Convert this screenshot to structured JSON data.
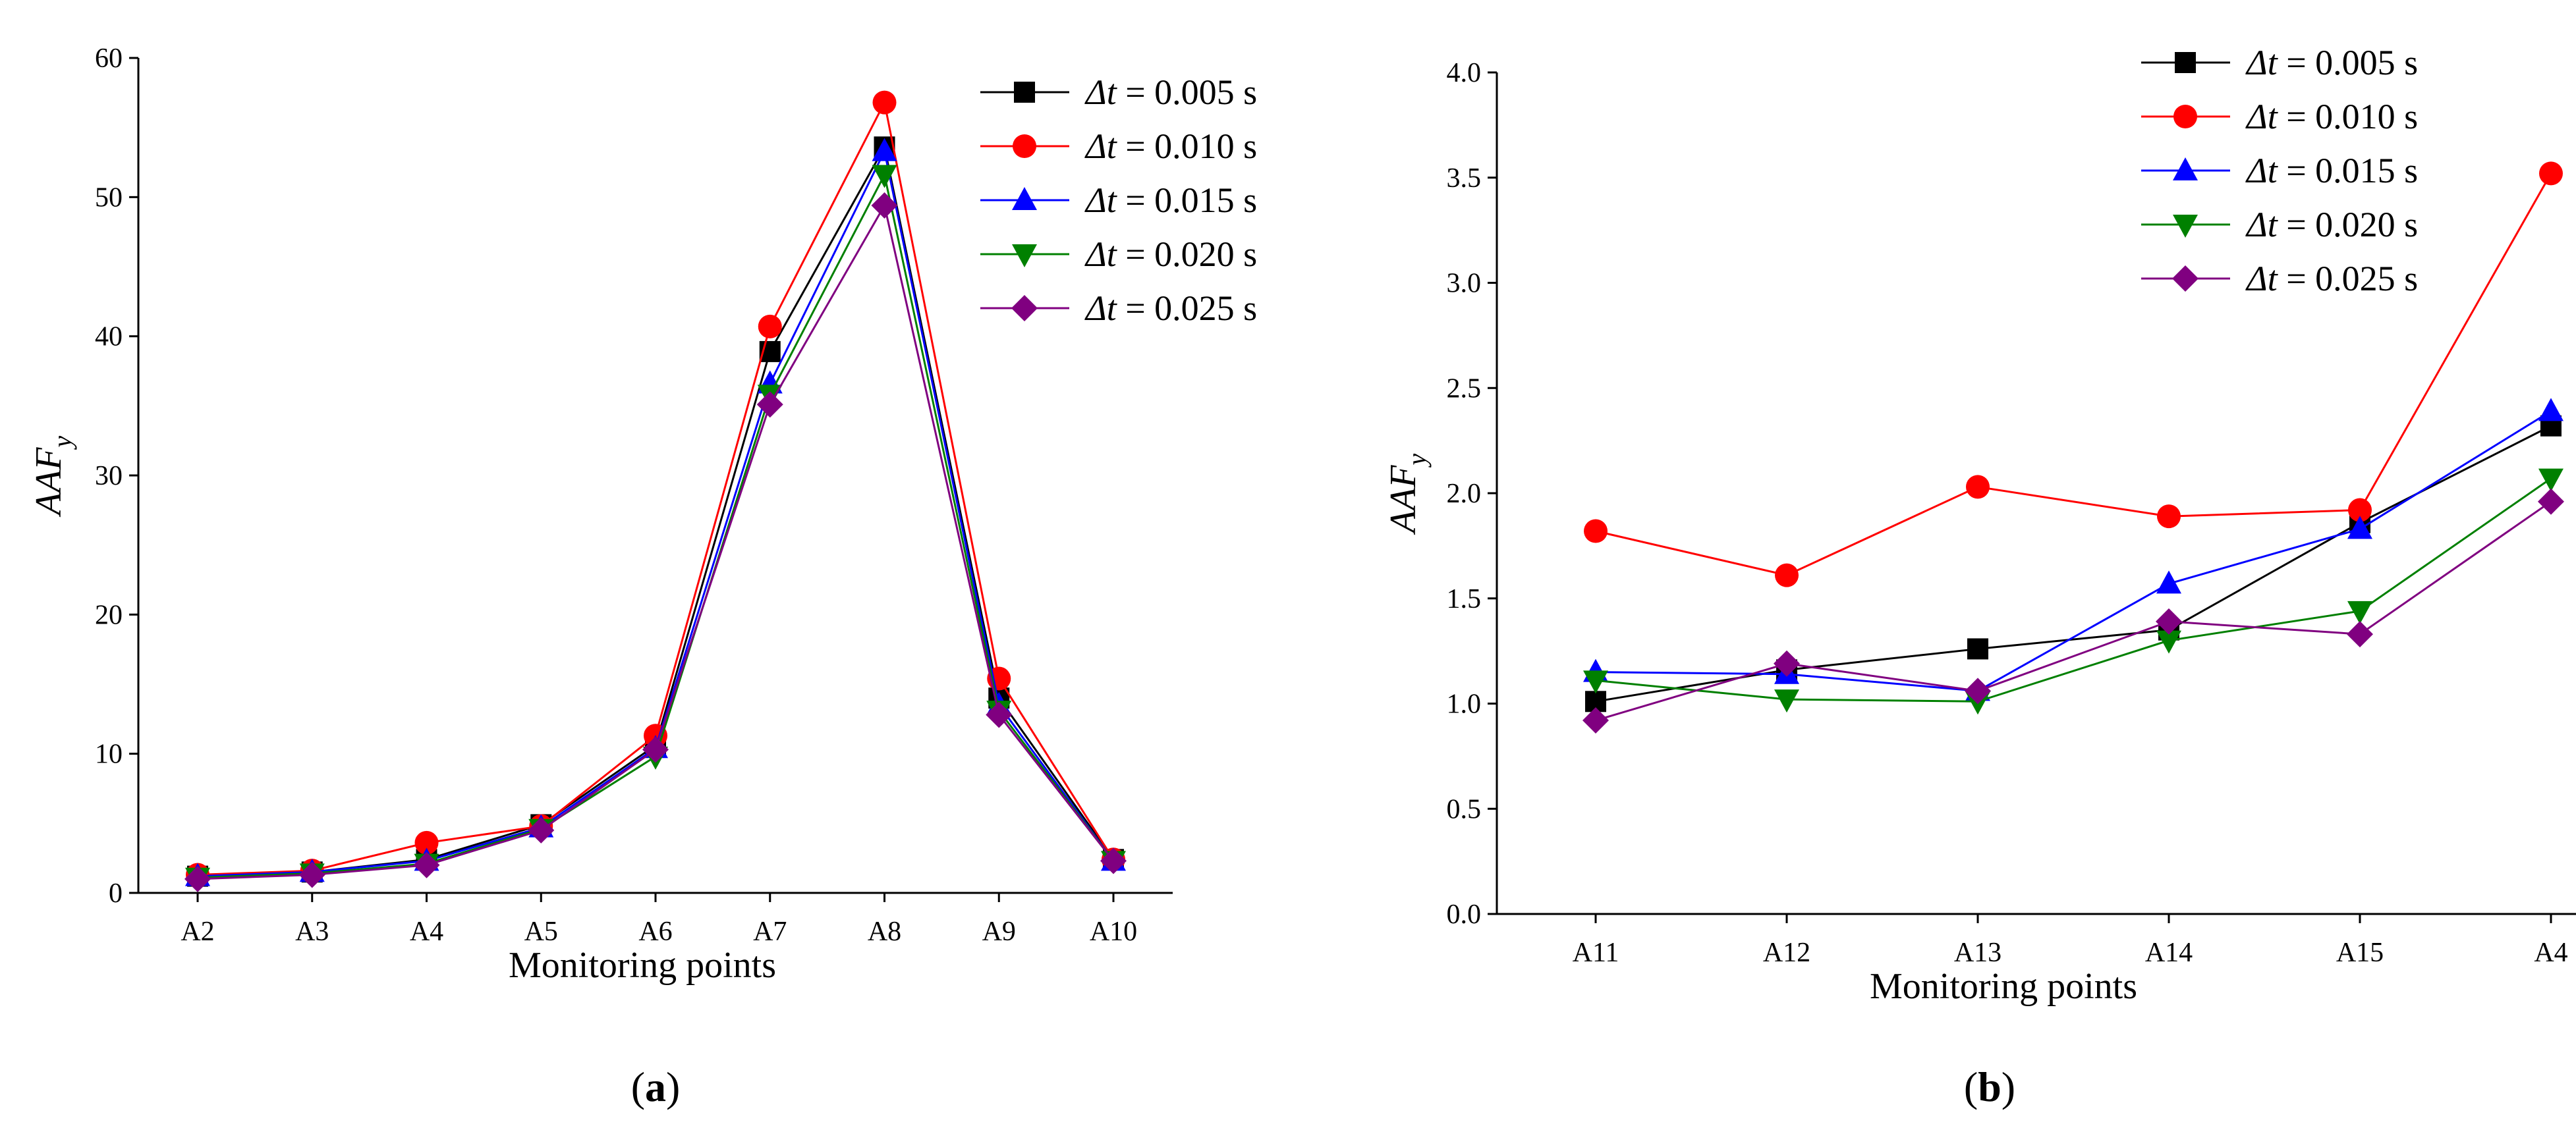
{
  "colors": {
    "axis": "#000000",
    "series": [
      "#000000",
      "#ff0000",
      "#0000ff",
      "#008000",
      "#800080"
    ]
  },
  "chart_data": [
    {
      "type": "line",
      "panel_label": "a",
      "xlabel": "Monitoring points",
      "ylabel": "AAF",
      "ylabel_sub": "y",
      "categories": [
        "A2",
        "A3",
        "A4",
        "A5",
        "A6",
        "A7",
        "A8",
        "A9",
        "A10"
      ],
      "ylim": [
        0,
        60
      ],
      "yticks": [
        0,
        10,
        20,
        30,
        40,
        50,
        60
      ],
      "ytick_labels": [
        "0",
        "10",
        "20",
        "30",
        "40",
        "50",
        "60"
      ],
      "legend_position": "top-right",
      "series": [
        {
          "name": "Δt = 0.005 s",
          "sym": "Δt",
          "rest": " = 0.005 s",
          "marker": "square",
          "color": "#000000",
          "values": [
            1.2,
            1.5,
            2.4,
            4.9,
            10.6,
            38.9,
            53.6,
            14.0,
            2.4
          ]
        },
        {
          "name": "Δt = 0.010 s",
          "sym": "Δt",
          "rest": " = 0.010 s",
          "marker": "circle",
          "color": "#ff0000",
          "values": [
            1.3,
            1.6,
            3.6,
            4.8,
            11.3,
            40.7,
            56.8,
            15.4,
            2.4
          ]
        },
        {
          "name": "Δt = 0.015 s",
          "sym": "Δt",
          "rest": " = 0.015 s",
          "marker": "triangle-up",
          "color": "#0000ff",
          "values": [
            1.2,
            1.5,
            2.3,
            4.7,
            10.4,
            36.6,
            53.3,
            13.5,
            2.3
          ]
        },
        {
          "name": "Δt = 0.020 s",
          "sym": "Δt",
          "rest": " = 0.020 s",
          "marker": "triangle-down",
          "color": "#008000",
          "values": [
            1.1,
            1.4,
            2.1,
            4.6,
            9.8,
            35.8,
            51.6,
            13.1,
            2.3
          ]
        },
        {
          "name": "Δt = 0.025 s",
          "sym": "Δt",
          "rest": " = 0.025 s",
          "marker": "diamond",
          "color": "#800080",
          "values": [
            1.0,
            1.3,
            2.0,
            4.5,
            10.3,
            35.1,
            49.4,
            12.8,
            2.3
          ]
        }
      ]
    },
    {
      "type": "line",
      "panel_label": "b",
      "xlabel": "Monitoring points",
      "ylabel": "AAF",
      "ylabel_sub": "y",
      "categories": [
        "A11",
        "A12",
        "A13",
        "A14",
        "A15",
        "A4"
      ],
      "ylim": [
        0,
        4
      ],
      "yticks": [
        0,
        0.5,
        1,
        1.5,
        2,
        2.5,
        3,
        3.5,
        4
      ],
      "ytick_labels": [
        "0.0",
        "0.5",
        "1.0",
        "1.5",
        "2.0",
        "2.5",
        "3.0",
        "3.5",
        "4.0"
      ],
      "legend_position": "top-right",
      "series": [
        {
          "name": "Δt = 0.005 s",
          "sym": "Δt",
          "rest": " = 0.005 s",
          "marker": "square",
          "color": "#000000",
          "values": [
            1.01,
            1.16,
            1.26,
            1.35,
            1.86,
            2.32
          ]
        },
        {
          "name": "Δt = 0.010 s",
          "sym": "Δt",
          "rest": " = 0.010 s",
          "marker": "circle",
          "color": "#ff0000",
          "values": [
            1.82,
            1.61,
            2.03,
            1.89,
            1.92,
            3.52
          ]
        },
        {
          "name": "Δt = 0.015 s",
          "sym": "Δt",
          "rest": " = 0.015 s",
          "marker": "triangle-up",
          "color": "#0000ff",
          "values": [
            1.15,
            1.14,
            1.06,
            1.57,
            1.83,
            2.39
          ]
        },
        {
          "name": "Δt = 0.020 s",
          "sym": "Δt",
          "rest": " = 0.020 s",
          "marker": "triangle-down",
          "color": "#008000",
          "values": [
            1.11,
            1.02,
            1.01,
            1.3,
            1.44,
            2.07
          ]
        },
        {
          "name": "Δt = 0.025 s",
          "sym": "Δt",
          "rest": " = 0.025 s",
          "marker": "diamond",
          "color": "#800080",
          "values": [
            0.92,
            1.19,
            1.06,
            1.39,
            1.33,
            1.96
          ]
        }
      ]
    }
  ]
}
